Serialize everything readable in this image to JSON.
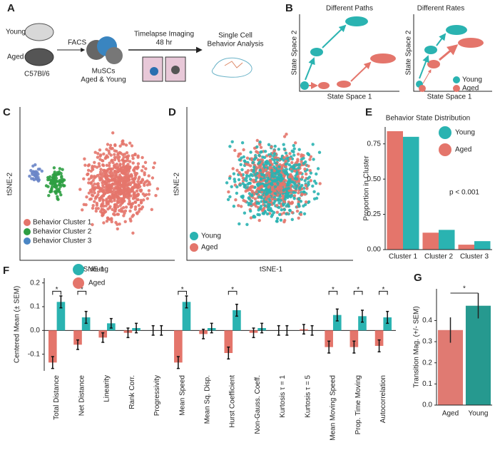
{
  "panels": {
    "labels": [
      "A",
      "B",
      "C",
      "D",
      "E",
      "F",
      "G"
    ]
  },
  "panel_a": {
    "mouse_young": "Young",
    "mouse_aged": "Aged",
    "strain": "C57Bl/6",
    "sort": "FACS",
    "cells": "MuSCs",
    "cells_sub": "Aged & Young",
    "imaging": "Timelapse Imaging",
    "imaging_time": "48 hr",
    "analysis": "Single Cell",
    "analysis_sub": "Behavior Analysis"
  },
  "panel_b": {
    "titles": [
      "Different Paths",
      "Different Rates"
    ],
    "x_label": "State Space 1",
    "y_label": "State Space 2",
    "legend": [
      "Young",
      "Aged"
    ]
  },
  "panel_c": {
    "x_label": "tSNE-1",
    "y_label": "tSNE-2",
    "legend": [
      "Behavior Cluster 1",
      "Behavior Cluster 2",
      "Behavior Cluster 3"
    ]
  },
  "panel_d": {
    "x_label": "tSNE-1",
    "y_label": "tSNE-2",
    "legend": [
      "Young",
      "Aged"
    ]
  },
  "chart_data": [
    {
      "type": "bar",
      "title": "Behavior State Distribution",
      "y_label": "Proportion in Cluster",
      "annotation": "p < 0.001",
      "categories": [
        "Cluster 1",
        "Cluster 2",
        "Cluster 3"
      ],
      "category_colors": [
        "#e4756b",
        "#2e9e43",
        "#4a86c4"
      ],
      "series": [
        {
          "name": "Young",
          "color": "#2ab3b1",
          "values": [
            0.8,
            0.14,
            0.06
          ]
        },
        {
          "name": "Aged",
          "color": "#e4756b",
          "values": [
            0.84,
            0.12,
            0.035
          ]
        }
      ],
      "ylim": [
        0,
        0.87
      ],
      "yticks": [
        {
          "value": 0,
          "label": "0.00"
        },
        {
          "value": 0.25,
          "label": "0.25"
        },
        {
          "value": 0.5,
          "label": "0.50"
        },
        {
          "value": 0.75,
          "label": "0.75"
        }
      ]
    },
    {
      "type": "errorbar",
      "y_label": "Centered Mean (± SEM)",
      "significance_marker": "*",
      "categories": [
        "Total Distance",
        "Net Distance",
        "Linearity",
        "Rank Corr.",
        "Progressivity",
        "Mean Speed",
        "Mean Sq. Disp.",
        "Hurst Coefficient",
        "Non-Gauss. Coeff.",
        "Kurtosis τ = 1",
        "Kurtosis τ = 5",
        "Mean Moving Speed",
        "Prop. Time Moving",
        "Autocorrelation"
      ],
      "significant": [
        true,
        true,
        false,
        false,
        false,
        true,
        false,
        true,
        false,
        false,
        false,
        true,
        true,
        true
      ],
      "series": [
        {
          "name": "Young",
          "color": "#2ab3b1",
          "values": [
            0.12,
            0.055,
            0.03,
            0.01,
            0,
            0.12,
            0.01,
            0.085,
            0.01,
            0,
            0,
            0.065,
            0.06,
            0.055
          ],
          "errors": [
            0.025,
            0.025,
            0.02,
            0.02,
            0.02,
            0.025,
            0.02,
            0.025,
            0.02,
            0.02,
            0.02,
            0.025,
            0.025,
            0.025
          ]
        },
        {
          "name": "Aged",
          "color": "#e4756b",
          "values": [
            -0.135,
            -0.06,
            -0.03,
            -0.01,
            0,
            -0.135,
            -0.015,
            -0.095,
            -0.01,
            0,
            0.005,
            -0.07,
            -0.07,
            -0.065
          ],
          "errors": [
            0.025,
            0.02,
            0.02,
            0.02,
            0.02,
            0.025,
            0.02,
            0.025,
            0.02,
            0.02,
            0.02,
            0.025,
            0.025,
            0.025
          ]
        }
      ],
      "ylim": [
        -0.17,
        0.22
      ],
      "yticks": [
        -0.1,
        {
          "value": 0,
          "label": "0.0"
        },
        0.1,
        0.2
      ]
    },
    {
      "type": "errorbar_single",
      "y_label": "Transition Mag. (+/- SEM)",
      "significance_marker": "*",
      "categories": [
        "Aged",
        "Young"
      ],
      "colors": [
        "#e07a72",
        "#26998f"
      ],
      "values": [
        0.355,
        0.47
      ],
      "errors": [
        0.06,
        0.06
      ],
      "ylim": [
        0,
        0.55
      ],
      "yticks": [
        {
          "value": 0,
          "label": "0.0"
        },
        0.1,
        0.2,
        0.3,
        0.4
      ]
    }
  ]
}
